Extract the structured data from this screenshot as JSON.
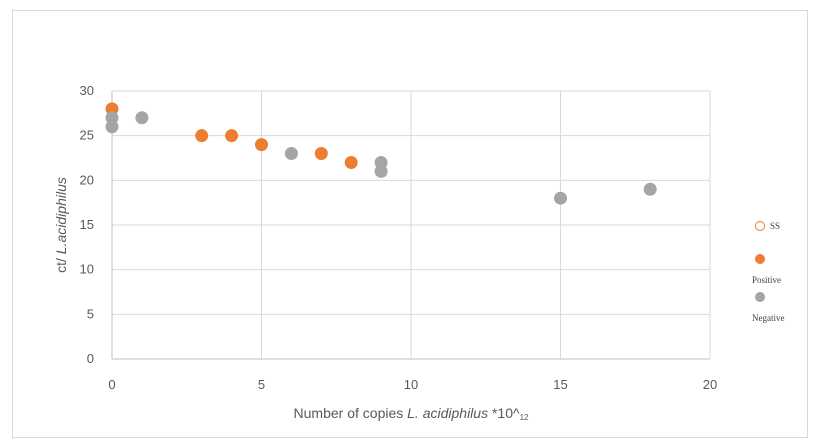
{
  "chart_data": {
    "type": "scatter",
    "title": "",
    "xlabel_parts": [
      {
        "text": "Number of copies ",
        "italic": false
      },
      {
        "text": "L. acidiphilus",
        "italic": true
      },
      {
        "text": " *10^",
        "italic": false
      },
      {
        "text": "12",
        "italic": false,
        "subscript": true
      }
    ],
    "ylabel_parts": [
      {
        "text": "ct/ ",
        "italic": false
      },
      {
        "text": "L.acidiphilus",
        "italic": true
      }
    ],
    "xlim": [
      0,
      20
    ],
    "ylim": [
      0,
      30
    ],
    "xticks": [
      0,
      5,
      10,
      15,
      20
    ],
    "yticks": [
      0,
      5,
      10,
      15,
      20,
      25,
      30
    ],
    "grid": true,
    "legend_position": "right",
    "series": [
      {
        "name": "SS",
        "color": "#ffffff",
        "stroke": "#ed7d31",
        "points": []
      },
      {
        "name": "Positive",
        "color": "#ed7d31",
        "points": [
          {
            "x": 0,
            "y": 28
          },
          {
            "x": 3,
            "y": 25
          },
          {
            "x": 4,
            "y": 25
          },
          {
            "x": 5,
            "y": 24
          },
          {
            "x": 7,
            "y": 23
          },
          {
            "x": 8,
            "y": 22
          }
        ]
      },
      {
        "name": "Negative",
        "color": "#a5a5a5",
        "points": [
          {
            "x": 0,
            "y": 27
          },
          {
            "x": 0,
            "y": 26
          },
          {
            "x": 1,
            "y": 27
          },
          {
            "x": 6,
            "y": 23
          },
          {
            "x": 9,
            "y": 22
          },
          {
            "x": 9,
            "y": 21
          },
          {
            "x": 15,
            "y": 18
          },
          {
            "x": 18,
            "y": 19
          }
        ]
      }
    ]
  }
}
